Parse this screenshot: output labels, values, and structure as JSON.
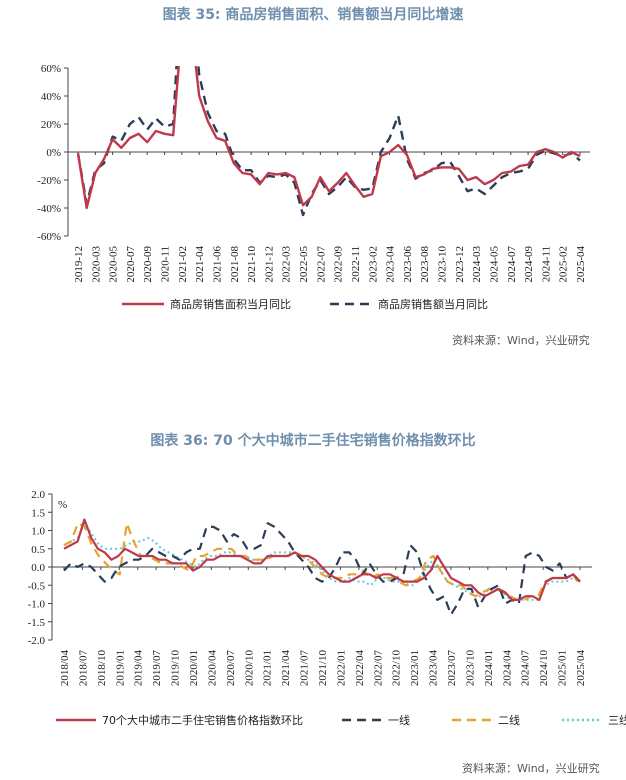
{
  "chart_data": [
    {
      "type": "line",
      "title": "图表 35: 商品房销售面积、销售额当月同比增速",
      "source": "资料来源：Wind，兴业研究",
      "ylim": [
        -60,
        60
      ],
      "yticks": [
        "60%",
        "40%",
        "20%",
        "0%",
        "-20%",
        "-40%",
        "-60%"
      ],
      "x_tick_labels": [
        "2019-12",
        "2020-03",
        "2020-05",
        "2020-07",
        "2020-09",
        "2020-11",
        "2021-02",
        "2021-04",
        "2021-06",
        "2021-08",
        "2021-10",
        "2021-12",
        "2022-03",
        "2022-05",
        "2022-07",
        "2022-09",
        "2022-11",
        "2023-02",
        "2023-04",
        "2023-06",
        "2023-08",
        "2023-10",
        "2023-12",
        "2024-03",
        "2024-05",
        "2024-07",
        "2024-09",
        "2024-11",
        "2025-02",
        "2025-04"
      ],
      "series": [
        {
          "name": "商品房销售面积当月同比",
          "color": "#c0394b",
          "style": "solid",
          "values": [
            -1,
            -40,
            -15,
            -5,
            9,
            3,
            10,
            13,
            7,
            15,
            13,
            12,
            90,
            95,
            40,
            22,
            10,
            8,
            -8,
            -15,
            -16,
            -23,
            -15,
            -16,
            -15,
            -18,
            -38,
            -32,
            -18,
            -28,
            -22,
            -15,
            -24,
            -32,
            -30,
            -3,
            0,
            5,
            -2,
            -18,
            -16,
            -12,
            -11,
            -11,
            -12,
            -20,
            -18,
            -23,
            -20,
            -15,
            -14,
            -10,
            -9,
            0,
            2,
            0,
            -4,
            0,
            -3
          ]
        },
        {
          "name": "商品房销售额当月同比",
          "color": "#2b3e57",
          "style": "dashed",
          "values": [
            -1,
            -37,
            -13,
            -8,
            11,
            8,
            20,
            25,
            16,
            24,
            18,
            20,
            130,
            133,
            55,
            28,
            15,
            13,
            -5,
            -13,
            -13,
            -22,
            -17,
            -18,
            -16,
            -22,
            -45,
            -30,
            -20,
            -30,
            -25,
            -18,
            -25,
            -27,
            -26,
            0,
            10,
            26,
            -5,
            -19,
            -15,
            -13,
            -8,
            -7,
            -17,
            -28,
            -26,
            -30,
            -24,
            -18,
            -15,
            -14,
            -12,
            -2,
            1,
            -1,
            -3,
            -1,
            -6
          ]
        }
      ]
    },
    {
      "type": "line",
      "title": "图表 36: 70 个大中城市二手住宅销售价格指数环比",
      "source": "资料来源：Wind，兴业研究",
      "ylabel": "%",
      "ylim": [
        -2.0,
        2.0
      ],
      "yticks": [
        "2.0",
        "1.5",
        "1.0",
        "0.5",
        "0.0",
        "-0.5",
        "-1.0",
        "-1.5",
        "-2.0"
      ],
      "x_tick_labels": [
        "2018/04",
        "2018/07",
        "2018/10",
        "2019/01",
        "2019/04",
        "2019/07",
        "2019/10",
        "2020/01",
        "2020/04",
        "2020/07",
        "2020/10",
        "2021/01",
        "2021/04",
        "2021/07",
        "2021/10",
        "2022/01",
        "2022/04",
        "2022/07",
        "2022/10",
        "2023/01",
        "2023/04",
        "2023/07",
        "2023/10",
        "2024/01",
        "2024/04",
        "2024/07",
        "2024/10",
        "2025/01",
        "2025/04"
      ],
      "series": [
        {
          "name": "70个大中城市二手住宅销售价格指数环比",
          "color": "#c0394b",
          "style": "solid",
          "width": 2.2,
          "values": [
            0.5,
            0.6,
            0.7,
            1.3,
            0.8,
            0.5,
            0.4,
            0.2,
            0.3,
            0.5,
            0.4,
            0.3,
            0.3,
            0.3,
            0.2,
            0.2,
            0.1,
            0.1,
            0.1,
            -0.1,
            0.0,
            0.2,
            0.2,
            0.3,
            0.3,
            0.3,
            0.3,
            0.2,
            0.1,
            0.1,
            0.3,
            0.3,
            0.3,
            0.3,
            0.4,
            0.3,
            0.3,
            0.2,
            0.0,
            -0.2,
            -0.3,
            -0.4,
            -0.4,
            -0.3,
            -0.2,
            -0.2,
            -0.3,
            -0.2,
            -0.2,
            -0.3,
            -0.4,
            -0.4,
            -0.4,
            -0.3,
            -0.1,
            0.3,
            0.0,
            -0.3,
            -0.4,
            -0.5,
            -0.5,
            -0.7,
            -0.8,
            -0.7,
            -0.6,
            -0.7,
            -0.9,
            -0.9,
            -0.8,
            -0.8,
            -0.9,
            -0.4,
            -0.3,
            -0.3,
            -0.3,
            -0.2,
            -0.4
          ]
        },
        {
          "name": "一线",
          "color": "#2b3e57",
          "style": "dashed",
          "width": 2.2,
          "values": [
            -0.1,
            0.1,
            0.0,
            0.1,
            0.0,
            -0.2,
            -0.4,
            -0.3,
            0.0,
            0.1,
            0.2,
            0.2,
            0.3,
            0.5,
            0.4,
            0.3,
            0.3,
            0.2,
            0.4,
            0.5,
            0.5,
            1.1,
            1.1,
            1.0,
            0.7,
            0.9,
            0.8,
            0.5,
            0.5,
            0.6,
            1.2,
            1.1,
            0.9,
            0.7,
            0.4,
            0.2,
            0.0,
            -0.3,
            -0.4,
            -0.3,
            0.0,
            0.4,
            0.4,
            0.2,
            -0.2,
            0.1,
            -0.2,
            -0.4,
            -0.4,
            -0.3,
            -0.2,
            0.6,
            0.4,
            -0.2,
            -0.6,
            -0.9,
            -0.8,
            -1.3,
            -1.0,
            -0.6,
            -0.6,
            -1.1,
            -0.8,
            -0.6,
            -0.5,
            -1.0,
            -0.9,
            -1.0,
            0.3,
            0.4,
            0.3,
            0.0,
            -0.1,
            0.1,
            -0.3,
            -0.2,
            -0.4
          ]
        },
        {
          "name": "二线",
          "color": "#e8a32d",
          "style": "dashed",
          "width": 2.2,
          "values": [
            0.6,
            0.7,
            1.2,
            1.1,
            0.6,
            0.3,
            0.1,
            -0.1,
            -0.2,
            1.2,
            0.7,
            0.3,
            0.3,
            0.2,
            0.1,
            0.1,
            0.1,
            0.0,
            -0.1,
            0.3,
            0.3,
            0.4,
            0.5,
            0.5,
            0.5,
            0.3,
            0.3,
            0.2,
            0.2,
            0.2,
            0.3,
            0.3,
            0.3,
            0.4,
            0.3,
            0.2,
            0.0,
            -0.2,
            -0.3,
            -0.3,
            -0.3,
            -0.2,
            -0.2,
            -0.1,
            -0.3,
            -0.2,
            -0.3,
            -0.3,
            -0.4,
            -0.5,
            -0.4,
            -0.3,
            0.2,
            0.3,
            -0.1,
            -0.4,
            -0.5,
            -0.5,
            -0.7,
            -0.8,
            -0.7,
            -0.6,
            -0.6,
            -0.7,
            -0.8,
            -0.9,
            -0.9,
            -0.8,
            -0.8,
            -0.4,
            -0.3,
            -0.3,
            -0.3,
            -0.2,
            -0.5
          ]
        },
        {
          "name": "三线",
          "color": "#5fcbd4",
          "style": "dotted",
          "width": 2,
          "values": [
            0.6,
            0.7,
            0.8,
            1.2,
            0.9,
            0.6,
            0.5,
            0.5,
            0.5,
            0.6,
            0.7,
            0.7,
            0.8,
            0.7,
            0.5,
            0.4,
            0.3,
            0.2,
            0.1,
            0.0,
            0.2,
            0.3,
            0.3,
            0.4,
            0.4,
            0.3,
            0.3,
            0.2,
            0.2,
            0.2,
            0.4,
            0.4,
            0.4,
            0.4,
            0.3,
            0.2,
            0.1,
            -0.1,
            -0.3,
            -0.4,
            -0.4,
            -0.3,
            -0.4,
            -0.4,
            -0.5,
            -0.3,
            -0.3,
            -0.4,
            -0.4,
            -0.5,
            -0.5,
            -0.3,
            0.0,
            0.2,
            -0.1,
            -0.4,
            -0.5,
            -0.6,
            -0.7,
            -0.8,
            -0.8,
            -0.6,
            -0.6,
            -0.7,
            -0.9,
            -0.9,
            -0.9,
            -0.9,
            -0.9,
            -0.5,
            -0.4,
            -0.4,
            -0.4,
            -0.3,
            -0.4
          ]
        }
      ]
    }
  ]
}
